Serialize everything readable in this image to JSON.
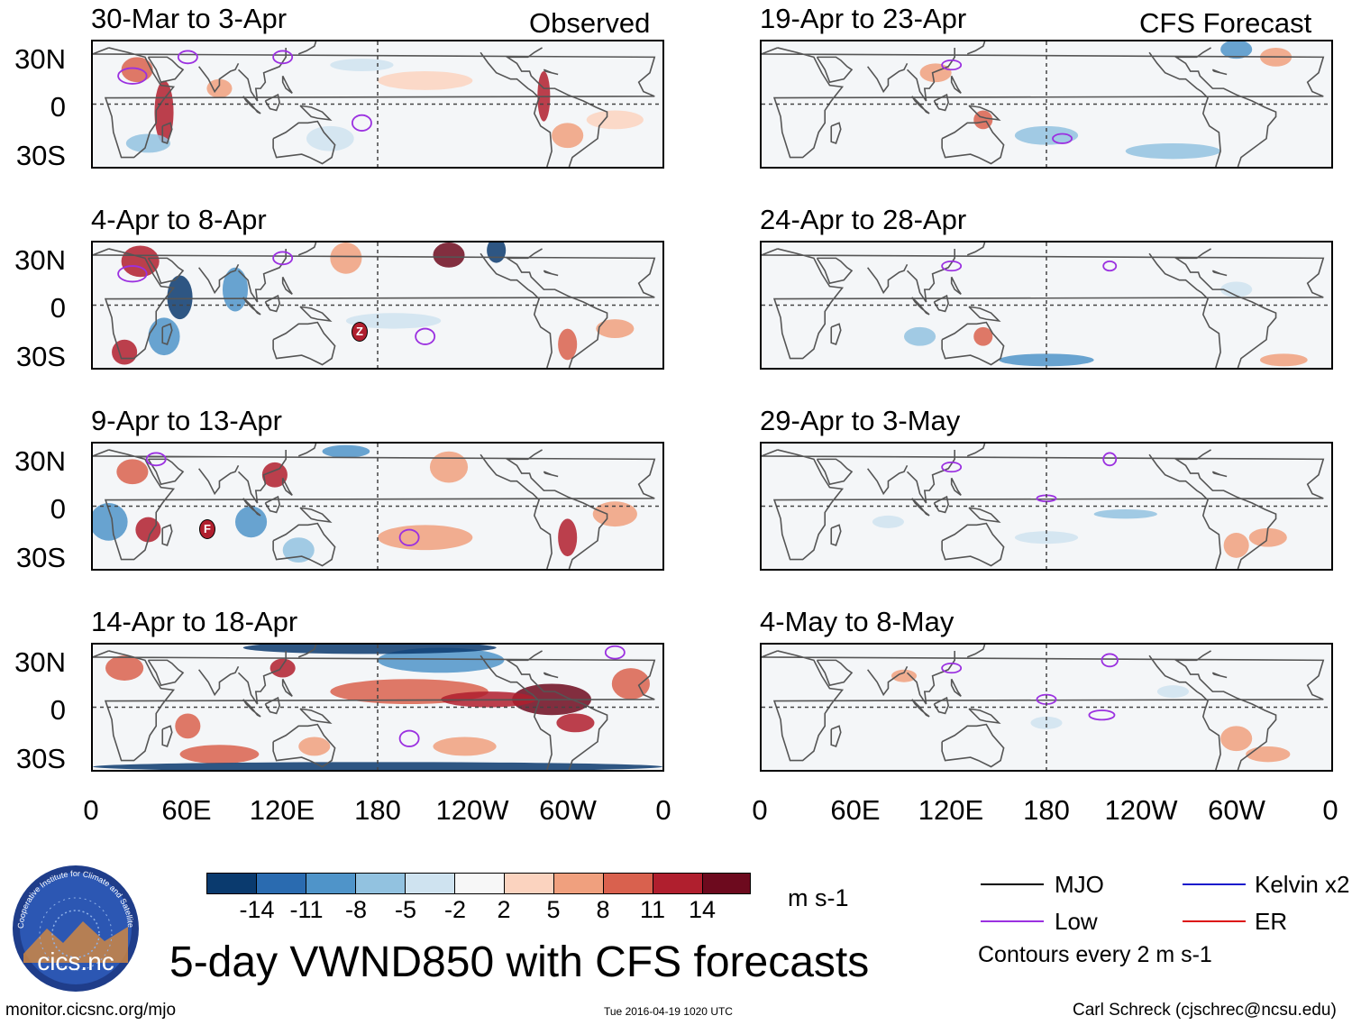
{
  "columns": {
    "left_label": "Observed",
    "right_label": "CFS Forecast"
  },
  "panels": {
    "left": [
      "30-Mar to 3-Apr",
      "4-Apr to 8-Apr",
      "9-Apr to 13-Apr",
      "14-Apr to 18-Apr"
    ],
    "right": [
      "19-Apr to 23-Apr",
      "24-Apr to 28-Apr",
      "29-Apr to 3-May",
      "4-May to 8-May"
    ]
  },
  "lat_labels": [
    "30N",
    "0",
    "30S"
  ],
  "lon_labels": [
    "0",
    "60E",
    "120E",
    "180",
    "120W",
    "60W",
    "0"
  ],
  "storm_markers": {
    "panel2": "Z",
    "panel3": "F"
  },
  "colorbar": {
    "ticks": [
      "-14",
      "-11",
      "-8",
      "-5",
      "-2",
      "2",
      "5",
      "8",
      "11",
      "14"
    ],
    "colors": [
      "#0a3a6e",
      "#2a6bb0",
      "#4f94c9",
      "#92c2e0",
      "#cfe3f0",
      "#f7f7f7",
      "#fbd3bf",
      "#f0a07e",
      "#d9614e",
      "#b01f2e",
      "#6d0a1e"
    ],
    "units": "m s-1"
  },
  "legend": {
    "items": [
      {
        "label": "MJO",
        "color": "#000000"
      },
      {
        "label": "Kelvin x2",
        "color": "#1a1acc"
      },
      {
        "label": "Low",
        "color": "#9b30e0"
      },
      {
        "label": "ER",
        "color": "#dd1111"
      }
    ],
    "contours_note": "Contours every 2 m s-1"
  },
  "logo_text": "cics.nc",
  "logo_ring_text": "Cooperative Institute for Climate and Satellites",
  "main_title": "5-day VWND850 with CFS forecasts",
  "footer": {
    "url": "monitor.cicsnc.org/mjo",
    "timestamp": "Tue 2016-04-19 1020 UTC",
    "author": "Carl Schreck (cjschrec@ncsu.edu)"
  }
}
